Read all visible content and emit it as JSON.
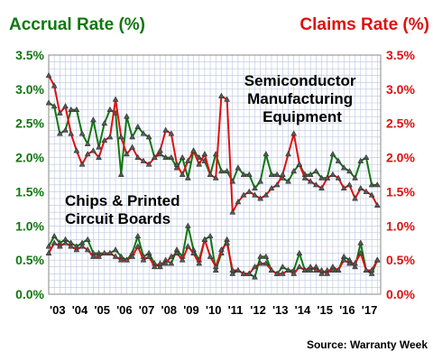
{
  "chart_data": {
    "type": "line",
    "left_axis_title": "Accrual Rate (%)",
    "right_axis_title": "Claims Rate (%)",
    "source": "Source: Warranty Week",
    "annotations": [
      {
        "text": [
          "Semiconductor",
          "Manufacturing",
          "Equipment"
        ]
      },
      {
        "text": [
          "Chips & Printed",
          "Circuit Boards"
        ]
      }
    ],
    "ylim": [
      0,
      3.5
    ],
    "xlim": [
      2003.0,
      2017.9
    ],
    "y_ticks": [
      0,
      0.5,
      1.0,
      1.5,
      2.0,
      2.5,
      3.0,
      3.5
    ],
    "y_tick_labels": [
      "0.0%",
      "0.5%",
      "1.0%",
      "1.5%",
      "2.0%",
      "2.5%",
      "3.0%",
      "3.5%"
    ],
    "x_tick_labels": [
      "'03",
      "'04",
      "'05",
      "'06",
      "'07",
      "'08",
      "'09",
      "'10",
      "'11",
      "'12",
      "'13",
      "'14",
      "'15",
      "'16",
      "'17"
    ],
    "grid": true,
    "colors": {
      "accrual": "#117711",
      "claims": "#dd1111",
      "left_axis_text": "#117711",
      "right_axis_text": "#dd1111"
    },
    "series": [
      {
        "group": "Semiconductor Manufacturing Equipment",
        "measure": "Accrual Rate",
        "axis": "left",
        "x": [
          2003.0,
          2003.25,
          2003.5,
          2003.75,
          2004.0,
          2004.25,
          2004.5,
          2004.75,
          2005.0,
          2005.25,
          2005.5,
          2005.75,
          2006.0,
          2006.25,
          2006.5,
          2006.75,
          2007.0,
          2007.25,
          2007.5,
          2007.75,
          2008.0,
          2008.25,
          2008.5,
          2008.75,
          2009.0,
          2009.25,
          2009.5,
          2009.75,
          2010.0,
          2010.25,
          2010.5,
          2010.75,
          2011.0,
          2011.25,
          2011.5,
          2011.75,
          2012.0,
          2012.25,
          2012.5,
          2012.75,
          2013.0,
          2013.25,
          2013.5,
          2013.75,
          2014.0,
          2014.25,
          2014.5,
          2014.75,
          2015.0,
          2015.25,
          2015.5,
          2015.75,
          2016.0,
          2016.25,
          2016.5,
          2016.75,
          2017.0,
          2017.25,
          2017.5,
          2017.75
        ],
        "y": [
          2.8,
          2.75,
          2.35,
          2.4,
          2.7,
          2.7,
          2.35,
          2.2,
          2.55,
          2.15,
          2.5,
          2.7,
          2.65,
          1.75,
          2.6,
          2.3,
          2.45,
          2.35,
          2.3,
          2.0,
          2.05,
          2.0,
          2.0,
          1.85,
          2.0,
          1.7,
          2.1,
          2.0,
          1.95,
          1.75,
          2.05,
          1.8,
          1.8,
          1.65,
          1.85,
          1.75,
          1.75,
          1.55,
          1.65,
          2.05,
          1.75,
          1.75,
          1.7,
          1.65,
          1.8,
          1.9,
          1.75,
          1.75,
          1.8,
          1.7,
          1.7,
          2.05,
          1.95,
          1.85,
          1.8,
          1.7,
          1.95,
          2.0,
          1.6,
          1.6
        ]
      },
      {
        "group": "Semiconductor Manufacturing Equipment",
        "measure": "Claims Rate",
        "axis": "right",
        "x": [
          2003.0,
          2003.25,
          2003.5,
          2003.75,
          2004.0,
          2004.25,
          2004.5,
          2004.75,
          2005.0,
          2005.25,
          2005.5,
          2005.75,
          2006.0,
          2006.25,
          2006.5,
          2006.75,
          2007.0,
          2007.25,
          2007.5,
          2007.75,
          2008.0,
          2008.25,
          2008.5,
          2008.75,
          2009.0,
          2009.25,
          2009.5,
          2009.75,
          2010.0,
          2010.25,
          2010.5,
          2010.75,
          2011.0,
          2011.25,
          2011.5,
          2011.75,
          2012.0,
          2012.25,
          2012.5,
          2012.75,
          2013.0,
          2013.25,
          2013.5,
          2013.75,
          2014.0,
          2014.25,
          2014.5,
          2014.75,
          2015.0,
          2015.25,
          2015.5,
          2015.75,
          2016.0,
          2016.25,
          2016.5,
          2016.75,
          2017.0,
          2017.25,
          2017.5,
          2017.75
        ],
        "y": [
          3.2,
          3.05,
          2.65,
          2.75,
          2.35,
          2.1,
          1.9,
          2.05,
          2.1,
          2.0,
          2.25,
          2.3,
          2.85,
          2.3,
          2.05,
          2.15,
          2.0,
          1.95,
          1.9,
          2.0,
          2.1,
          2.4,
          2.35,
          1.9,
          1.75,
          1.95,
          2.1,
          1.9,
          2.05,
          1.75,
          1.7,
          2.9,
          2.85,
          1.2,
          1.35,
          1.45,
          1.5,
          1.45,
          1.4,
          1.45,
          1.55,
          1.6,
          1.75,
          2.05,
          2.35,
          1.9,
          1.7,
          1.65,
          1.6,
          1.55,
          1.7,
          1.75,
          1.7,
          1.55,
          1.6,
          1.4,
          1.55,
          1.5,
          1.45,
          1.3
        ]
      },
      {
        "group": "Chips & Printed Circuit Boards",
        "measure": "Accrual Rate",
        "axis": "left",
        "x": [
          2003.0,
          2003.25,
          2003.5,
          2003.75,
          2004.0,
          2004.25,
          2004.5,
          2004.75,
          2005.0,
          2005.25,
          2005.5,
          2005.75,
          2006.0,
          2006.25,
          2006.5,
          2006.75,
          2007.0,
          2007.25,
          2007.5,
          2007.75,
          2008.0,
          2008.25,
          2008.5,
          2008.75,
          2009.0,
          2009.25,
          2009.5,
          2009.75,
          2010.0,
          2010.25,
          2010.5,
          2010.75,
          2011.0,
          2011.25,
          2011.5,
          2011.75,
          2012.0,
          2012.25,
          2012.5,
          2012.75,
          2013.0,
          2013.25,
          2013.5,
          2013.75,
          2014.0,
          2014.25,
          2014.5,
          2014.75,
          2015.0,
          2015.25,
          2015.5,
          2015.75,
          2016.0,
          2016.25,
          2016.5,
          2016.75,
          2017.0,
          2017.25,
          2017.5,
          2017.75
        ],
        "y": [
          0.7,
          0.85,
          0.75,
          0.8,
          0.75,
          0.7,
          0.75,
          0.8,
          0.6,
          0.6,
          0.6,
          0.6,
          0.65,
          0.55,
          0.5,
          0.6,
          0.85,
          0.55,
          0.6,
          0.45,
          0.4,
          0.5,
          0.45,
          0.65,
          0.55,
          1.0,
          0.65,
          0.5,
          0.8,
          0.85,
          0.35,
          0.6,
          0.8,
          0.3,
          0.35,
          0.3,
          0.3,
          0.25,
          0.55,
          0.55,
          0.35,
          0.3,
          0.4,
          0.35,
          0.35,
          0.6,
          0.35,
          0.35,
          0.4,
          0.3,
          0.35,
          0.35,
          0.35,
          0.55,
          0.5,
          0.4,
          0.75,
          0.35,
          0.3,
          0.5
        ]
      },
      {
        "group": "Chips & Printed Circuit Boards",
        "measure": "Claims Rate",
        "axis": "right",
        "x": [
          2003.0,
          2003.25,
          2003.5,
          2003.75,
          2004.0,
          2004.25,
          2004.5,
          2004.75,
          2005.0,
          2005.25,
          2005.5,
          2005.75,
          2006.0,
          2006.25,
          2006.5,
          2006.75,
          2007.0,
          2007.25,
          2007.5,
          2007.75,
          2008.0,
          2008.25,
          2008.5,
          2008.75,
          2009.0,
          2009.25,
          2009.5,
          2009.75,
          2010.0,
          2010.25,
          2010.5,
          2010.75,
          2011.0,
          2011.25,
          2011.5,
          2011.75,
          2012.0,
          2012.25,
          2012.5,
          2012.75,
          2013.0,
          2013.25,
          2013.5,
          2013.75,
          2014.0,
          2014.25,
          2014.5,
          2014.75,
          2015.0,
          2015.25,
          2015.5,
          2015.75,
          2016.0,
          2016.25,
          2016.5,
          2016.75,
          2017.0,
          2017.25,
          2017.5,
          2017.75
        ],
        "y": [
          0.6,
          0.75,
          0.7,
          0.75,
          0.7,
          0.65,
          0.7,
          0.65,
          0.55,
          0.55,
          0.6,
          0.6,
          0.55,
          0.5,
          0.5,
          0.55,
          0.7,
          0.5,
          0.55,
          0.4,
          0.45,
          0.45,
          0.55,
          0.6,
          0.5,
          0.7,
          0.6,
          0.45,
          0.8,
          0.55,
          0.4,
          0.65,
          0.75,
          0.35,
          0.35,
          0.3,
          0.3,
          0.4,
          0.45,
          0.45,
          0.35,
          0.3,
          0.3,
          0.35,
          0.3,
          0.4,
          0.35,
          0.4,
          0.35,
          0.35,
          0.3,
          0.4,
          0.35,
          0.5,
          0.45,
          0.45,
          0.6,
          0.35,
          0.35,
          0.5
        ]
      }
    ]
  }
}
